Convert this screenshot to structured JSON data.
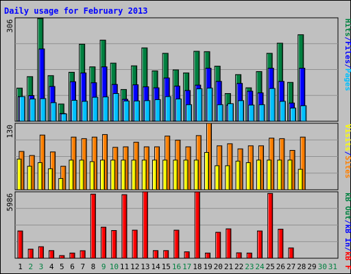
{
  "title": "Daily usage for February 2013",
  "colors": {
    "hits": "#008040",
    "files": "#0000ff",
    "pages": "#00c0ff",
    "sites": "#ff8000",
    "visits": "#ffff00",
    "kbytes": "#ff0000",
    "weekend_day": "#008040",
    "weekday": "#000000",
    "separator": "#0000ff"
  },
  "chart_data": [
    {
      "type": "bar",
      "panel": "hits-files-pages",
      "y_max_label": "306",
      "ylim": [
        0,
        306
      ],
      "grid": true,
      "axis_label_parts": [
        "Pages",
        "/",
        "Files",
        "/",
        "Hits"
      ],
      "categories": [
        "1",
        "2",
        "3",
        "4",
        "5",
        "6",
        "7",
        "8",
        "9",
        "10",
        "11",
        "12",
        "13",
        "14",
        "15",
        "16",
        "17",
        "18",
        "19",
        "20",
        "21",
        "22",
        "23",
        "24",
        "25",
        "26",
        "27",
        "28",
        "29",
        "30",
        "31"
      ],
      "series": [
        {
          "name": "Hits",
          "values": [
            98,
            132,
            304,
            135,
            51,
            145,
            228,
            161,
            240,
            172,
            94,
            164,
            217,
            149,
            201,
            152,
            143,
            207,
            206,
            163,
            82,
            138,
            99,
            147,
            201,
            231,
            115,
            256,
            0,
            0,
            0
          ]
        },
        {
          "name": "Files",
          "values": [
            73,
            76,
            214,
            103,
            23,
            117,
            143,
            114,
            161,
            109,
            65,
            108,
            102,
            99,
            128,
            104,
            91,
            107,
            157,
            118,
            48,
            112,
            89,
            84,
            157,
            118,
            54,
            157,
            0,
            0,
            0
          ]
        },
        {
          "name": "Pages",
          "values": [
            73,
            66,
            67,
            55,
            22,
            62,
            59,
            71,
            72,
            82,
            60,
            60,
            61,
            64,
            73,
            66,
            49,
            96,
            98,
            49,
            52,
            61,
            48,
            49,
            97,
            59,
            39,
            46,
            0,
            0,
            0
          ]
        }
      ]
    },
    {
      "type": "bar",
      "panel": "visits-sites",
      "y_max_label": "130",
      "ylim": [
        0,
        130
      ],
      "grid": true,
      "axis_label_parts": [
        "Sites",
        "/",
        "Visits"
      ],
      "categories": [
        "1",
        "2",
        "3",
        "4",
        "5",
        "6",
        "7",
        "8",
        "9",
        "10",
        "11",
        "12",
        "13",
        "14",
        "15",
        "16",
        "17",
        "18",
        "19",
        "20",
        "21",
        "22",
        "23",
        "24",
        "25",
        "26",
        "27",
        "28",
        "29",
        "30",
        "31"
      ],
      "series": [
        {
          "name": "Visits",
          "values": [
            60,
            46,
            53,
            41,
            22,
            58,
            58,
            55,
            58,
            58,
            58,
            58,
            58,
            58,
            58,
            58,
            58,
            58,
            73,
            47,
            47,
            56,
            53,
            58,
            58,
            58,
            58,
            40,
            0,
            0,
            0
          ]
        },
        {
          "name": "Sites",
          "values": [
            75,
            67,
            107,
            74,
            46,
            103,
            100,
            103,
            108,
            83,
            84,
            93,
            84,
            84,
            105,
            97,
            84,
            106,
            130,
            86,
            90,
            80,
            86,
            86,
            101,
            100,
            77,
            103,
            0,
            0,
            0
          ]
        }
      ]
    },
    {
      "type": "bar",
      "panel": "kbytes",
      "y_max_label": "5986",
      "ylim": [
        0,
        5986
      ],
      "grid": true,
      "axis_label_parts": [
        "kB F",
        "/",
        "kB In",
        "/",
        "kB Out"
      ],
      "categories": [
        "1",
        "2",
        "3",
        "4",
        "5",
        "6",
        "7",
        "8",
        "9",
        "10",
        "11",
        "12",
        "13",
        "14",
        "15",
        "16",
        "17",
        "18",
        "19",
        "20",
        "21",
        "22",
        "23",
        "24",
        "25",
        "26",
        "27",
        "28",
        "29",
        "30",
        "31"
      ],
      "series": [
        {
          "name": "kB F",
          "values": [
            2460,
            820,
            1040,
            690,
            240,
            470,
            680,
            5780,
            2800,
            2500,
            5730,
            2530,
            5990,
            690,
            690,
            2530,
            580,
            5980,
            470,
            2340,
            2650,
            490,
            470,
            2460,
            5840,
            2620,
            930,
            0,
            0,
            0,
            0
          ]
        }
      ]
    }
  ]
}
